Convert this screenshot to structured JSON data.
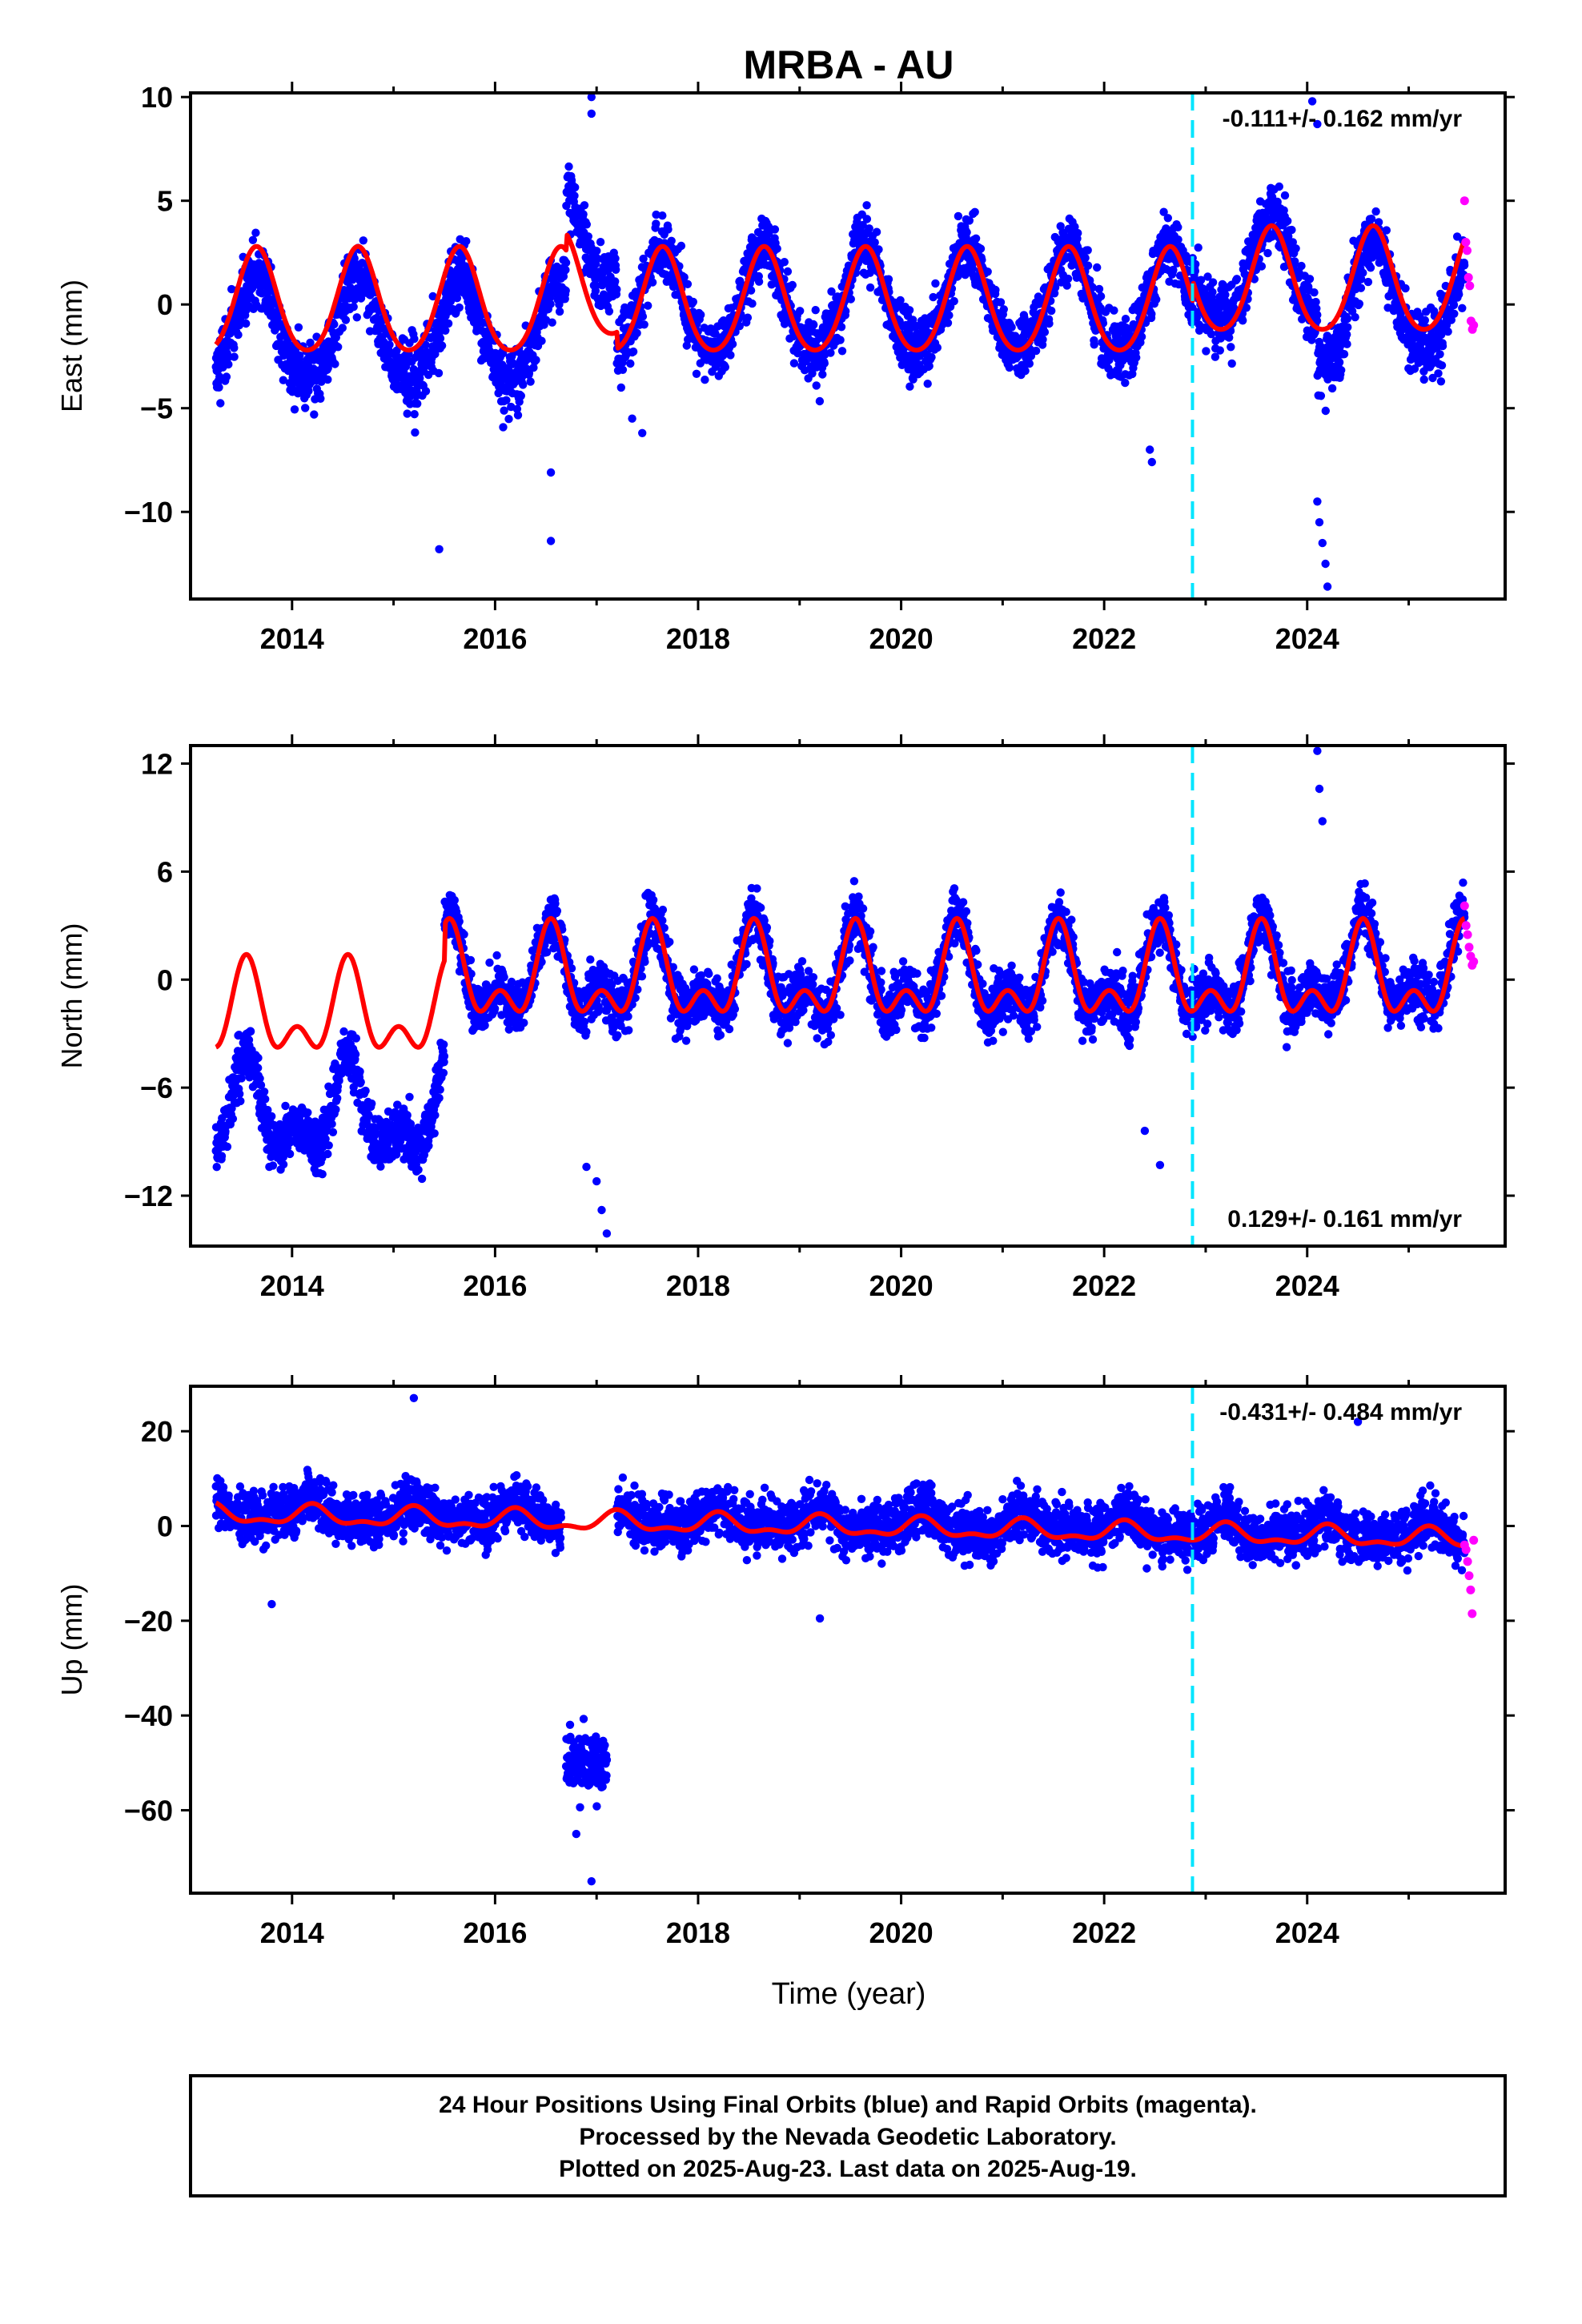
{
  "chart_data": {
    "type": "scatter",
    "title": "MRBA - AU",
    "xlabel": "Time (year)",
    "xlim": [
      2013.0,
      2025.95
    ],
    "x_ticks": [
      "2014",
      "2016",
      "2018",
      "2020",
      "2022",
      "2024"
    ],
    "event_line_x": 2022.87,
    "colors": {
      "final": "#0000ff",
      "rapid": "#ff00ff",
      "model": "#ff0000",
      "event": "#00e5ff",
      "frame": "#000000"
    },
    "data_span": [
      2013.25,
      2025.55
    ],
    "rapid_span": [
      2025.55,
      2025.64
    ],
    "panels": [
      {
        "id": "east",
        "ylabel": "East (mm)",
        "ylim": [
          -14.2,
          10.2
        ],
        "y_ticks": [
          "10",
          "5",
          "0",
          "−5",
          "−10"
        ],
        "y_tick_values": [
          10,
          5,
          0,
          -5,
          -10
        ],
        "rate": "-0.111+/- 0.162 mm/yr",
        "rate_pos": "top-right",
        "model": {
          "amp1": 2.5,
          "amp2": 0.3,
          "phase": 0.65,
          "offsets": [
            [
              2013.0,
              0.0
            ],
            [
              2016.7,
              0.8
            ],
            [
              2017.2,
              0.0
            ],
            [
              2022.87,
              1.0
            ]
          ]
        },
        "scatter": {
          "noise": 1.3,
          "offsets": [
            [
              2013.0,
              -1.3
            ],
            [
              2016.7,
              3.2
            ],
            [
              2017.2,
              0.0
            ],
            [
              2022.87,
              1.5
            ],
            [
              2024.1,
              -0.6
            ],
            [
              2024.4,
              0.2
            ]
          ]
        },
        "outliers": [
          [
            2015.45,
            -11.8
          ],
          [
            2016.55,
            -11.4
          ],
          [
            2016.55,
            -8.1
          ],
          [
            2022.45,
            -7.0
          ],
          [
            2022.47,
            -7.6
          ],
          [
            2024.05,
            9.8
          ],
          [
            2024.1,
            8.7
          ],
          [
            2024.1,
            -9.5
          ],
          [
            2024.12,
            -10.5
          ],
          [
            2024.15,
            -11.5
          ],
          [
            2024.18,
            -12.5
          ],
          [
            2024.2,
            -13.6
          ],
          [
            2016.95,
            10.0
          ],
          [
            2016.95,
            9.2
          ],
          [
            2017.35,
            -5.5
          ],
          [
            2017.45,
            -6.2
          ]
        ],
        "rapid_values": [
          5.0,
          3.0,
          2.6,
          1.3,
          0.9,
          -0.8,
          -1.2,
          -1.0
        ]
      },
      {
        "id": "north",
        "ylabel": "North (mm)",
        "ylim": [
          -14.8,
          13.0
        ],
        "y_ticks": [
          "12",
          "6",
          "0",
          "−6",
          "−12"
        ],
        "y_tick_values": [
          12,
          6,
          0,
          -6,
          -12
        ],
        "rate": "0.129+/- 0.161 mm/yr",
        "rate_pos": "bottom-right",
        "model": {
          "amp1": 2.0,
          "amp2": 1.4,
          "phase": 0.55,
          "offsets": [
            [
              2013.0,
              -2.0
            ],
            [
              2015.5,
              0.0
            ]
          ]
        },
        "scatter": {
          "noise": 1.3,
          "offsets": [
            [
              2013.0,
              -7.5
            ],
            [
              2015.5,
              0.0
            ],
            [
              2024.0,
              0.3
            ]
          ]
        },
        "outliers": [
          [
            2016.9,
            -10.4
          ],
          [
            2017.0,
            -11.2
          ],
          [
            2017.05,
            -12.8
          ],
          [
            2017.1,
            -14.1
          ],
          [
            2022.4,
            -8.4
          ],
          [
            2022.55,
            -10.3
          ],
          [
            2024.1,
            12.7
          ],
          [
            2024.12,
            10.6
          ],
          [
            2024.15,
            8.8
          ]
        ],
        "rapid_values": [
          4.1,
          3.0,
          2.5,
          1.8,
          1.3,
          0.8,
          1.0
        ]
      },
      {
        "id": "up",
        "ylabel": "Up (mm)",
        "ylim": [
          -77.5,
          29.5
        ],
        "y_ticks": [
          "20",
          "0",
          "−20",
          "−40",
          "−60"
        ],
        "y_tick_values": [
          20,
          0,
          -20,
          -40,
          -60
        ],
        "rate": "-0.431+/- 0.484 mm/yr",
        "rate_pos": "top-right",
        "model": {
          "amp1": 1.8,
          "amp2": 0.9,
          "phase": 0.2,
          "trend": -0.43,
          "offsets": [
            [
              2013.0,
              0.0
            ]
          ]
        },
        "scatter": {
          "noise": 4.5,
          "offsets": [
            [
              2013.0,
              1.0
            ]
          ]
        },
        "gap": [
          2016.65,
          2017.2
        ],
        "cluster": {
          "x": [
            2016.7,
            2017.1
          ],
          "center": -50,
          "noise": 5.5
        },
        "outliers": [
          [
            2015.2,
            27.0
          ],
          [
            2016.95,
            -75.0
          ],
          [
            2016.8,
            -65.0
          ],
          [
            2013.8,
            -16.5
          ],
          [
            2024.5,
            22.0
          ],
          [
            2019.2,
            -19.5
          ]
        ],
        "rapid_values": [
          -4.0,
          -5.0,
          -7.5,
          -10.5,
          -13.5,
          -18.5,
          -3.0
        ]
      }
    ],
    "footer": [
      "24 Hour Positions Using Final Orbits (blue) and Rapid Orbits (magenta).",
      "Processed by the Nevada Geodetic Laboratory.",
      "Plotted on 2025-Aug-23. Last data on 2025-Aug-19."
    ]
  }
}
